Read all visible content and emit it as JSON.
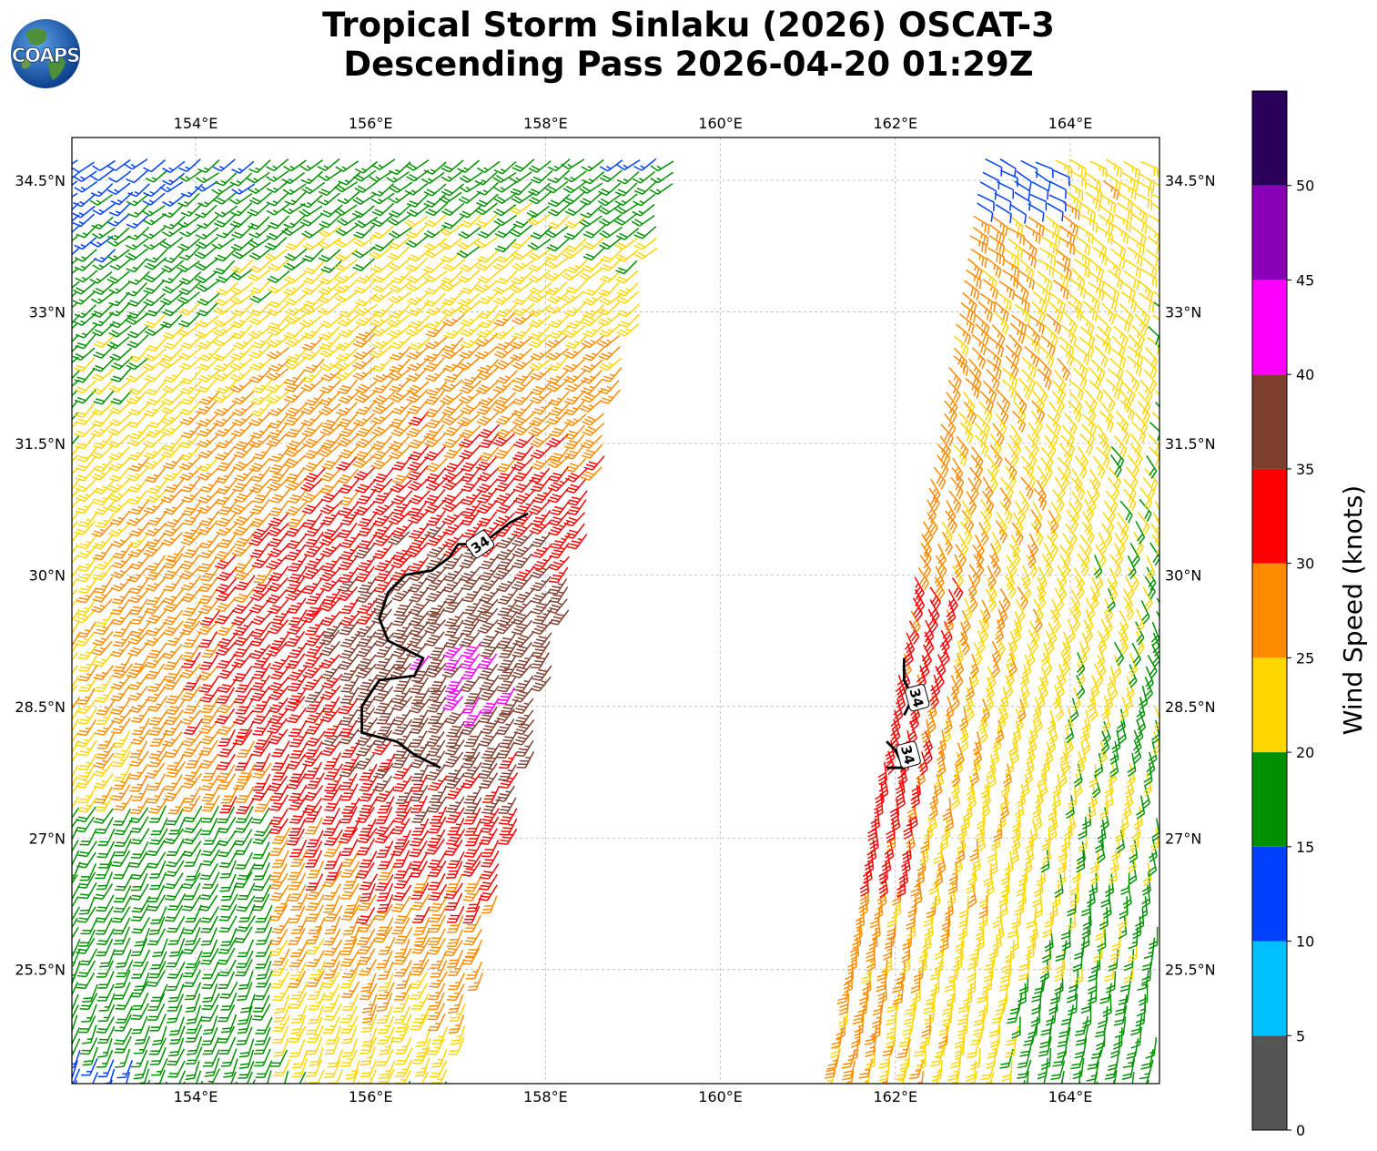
{
  "header": {
    "title_line1": "Tropical Storm Sinlaku (2026) OSCAT-3",
    "title_line2": "Descending Pass 2026-04-20 01:29Z"
  },
  "logo": {
    "text": "COAPS",
    "icon": "globe-icon"
  },
  "map": {
    "lon_range": [
      152.6,
      165.0
    ],
    "lat_range": [
      23.8,
      34.6
    ],
    "lon_ticks": [
      {
        "value": 154,
        "label": "154°E"
      },
      {
        "value": 156,
        "label": "156°E"
      },
      {
        "value": 158,
        "label": "158°E"
      },
      {
        "value": 160,
        "label": "160°E"
      },
      {
        "value": 162,
        "label": "162°E"
      },
      {
        "value": 164,
        "label": "164°E"
      }
    ],
    "lat_ticks": [
      {
        "value": 34.5,
        "label": "34.5°N"
      },
      {
        "value": 33.0,
        "label": "33°N"
      },
      {
        "value": 31.5,
        "label": "31.5°N"
      },
      {
        "value": 30.0,
        "label": "30°N"
      },
      {
        "value": 28.5,
        "label": "28.5°N"
      },
      {
        "value": 27.0,
        "label": "27°N"
      },
      {
        "value": 25.5,
        "label": "25.5°N"
      }
    ],
    "grid": true,
    "contour_label": "34",
    "contour_west": [
      [
        156.8,
        27.8
      ],
      [
        156.5,
        27.95
      ],
      [
        156.3,
        28.1
      ],
      [
        155.9,
        28.2
      ],
      [
        155.9,
        28.5
      ],
      [
        156.1,
        28.8
      ],
      [
        156.5,
        28.85
      ],
      [
        156.6,
        29.05
      ],
      [
        156.2,
        29.25
      ],
      [
        156.1,
        29.5
      ],
      [
        156.2,
        29.8
      ],
      [
        156.4,
        30.0
      ],
      [
        156.7,
        30.05
      ],
      [
        156.9,
        30.2
      ],
      [
        157.0,
        30.35
      ],
      [
        157.25,
        30.35
      ],
      [
        157.4,
        30.45
      ],
      [
        157.6,
        30.6
      ],
      [
        157.8,
        30.7
      ]
    ],
    "contour_east": [
      [
        [
          162.1,
          28.4
        ],
        [
          162.2,
          28.6
        ],
        [
          162.1,
          28.8
        ],
        [
          162.1,
          29.0
        ],
        [
          162.1,
          29.05
        ]
      ],
      [
        [
          161.9,
          27.8
        ],
        [
          162.1,
          27.8
        ],
        [
          162.0,
          28.0
        ],
        [
          161.9,
          28.1
        ]
      ]
    ],
    "contour_label_positions": [
      [
        157.25,
        30.35
      ],
      [
        162.25,
        28.6
      ],
      [
        162.15,
        27.95
      ]
    ]
  },
  "colorbar": {
    "label": "Wind Speed (knots)",
    "ticks": [
      "0",
      "5",
      "10",
      "15",
      "20",
      "25",
      "30",
      "35",
      "40",
      "45",
      "50"
    ],
    "bins": [
      {
        "from": 0,
        "to": 5,
        "color": "#555555"
      },
      {
        "from": 5,
        "to": 10,
        "color": "#00BFFF"
      },
      {
        "from": 10,
        "to": 15,
        "color": "#0040FF"
      },
      {
        "from": 15,
        "to": 20,
        "color": "#009000"
      },
      {
        "from": 20,
        "to": 25,
        "color": "#FFD700"
      },
      {
        "from": 25,
        "to": 30,
        "color": "#FF8C00"
      },
      {
        "from": 30,
        "to": 35,
        "color": "#FF0000"
      },
      {
        "from": 35,
        "to": 40,
        "color": "#7F3F2F"
      },
      {
        "from": 40,
        "to": 45,
        "color": "#FF00FF"
      },
      {
        "from": 45,
        "to": 50,
        "color": "#8A00B8"
      },
      {
        "from": 50,
        "to": 55,
        "color": "#2A005A"
      }
    ]
  },
  "wind_field": {
    "swath_west": {
      "lon_at_lat35": [
        152.6,
        159.6
      ],
      "lon_at_lat24": [
        152.6,
        156.9
      ]
    },
    "swath_east": {
      "lon_at_lat35": [
        163.0,
        165.0
      ],
      "lon_at_lat24": [
        161.2,
        165.0
      ]
    },
    "center": {
      "lon": 157.2,
      "lat": 29.0
    }
  }
}
